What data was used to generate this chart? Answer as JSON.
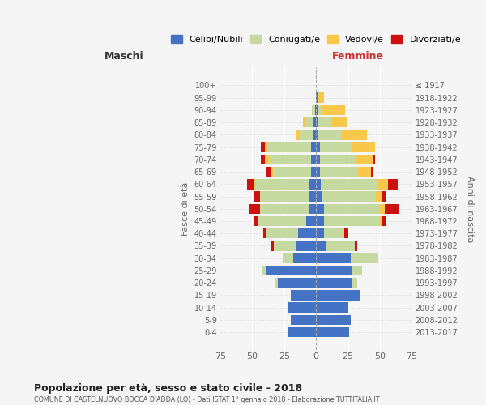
{
  "age_groups": [
    "100+",
    "95-99",
    "90-94",
    "85-89",
    "80-84",
    "75-79",
    "70-74",
    "65-69",
    "60-64",
    "55-59",
    "50-54",
    "45-49",
    "40-44",
    "35-39",
    "30-34",
    "25-29",
    "20-24",
    "15-19",
    "10-14",
    "5-9",
    "0-4"
  ],
  "birth_years": [
    "≤ 1917",
    "1918-1922",
    "1923-1927",
    "1928-1932",
    "1933-1937",
    "1938-1942",
    "1943-1947",
    "1948-1952",
    "1953-1957",
    "1958-1962",
    "1963-1967",
    "1968-1972",
    "1973-1977",
    "1978-1982",
    "1983-1987",
    "1988-1992",
    "1993-1997",
    "1998-2002",
    "2003-2007",
    "2008-2012",
    "2013-2017"
  ],
  "males": {
    "celibe": [
      0,
      0,
      1,
      2,
      2,
      4,
      4,
      4,
      5,
      6,
      6,
      8,
      14,
      15,
      18,
      39,
      30,
      20,
      22,
      20,
      22
    ],
    "coniugato": [
      0,
      0,
      2,
      6,
      11,
      34,
      33,
      30,
      42,
      38,
      38,
      38,
      25,
      18,
      8,
      3,
      2,
      0,
      0,
      0,
      0
    ],
    "vedovo": [
      0,
      0,
      0,
      2,
      3,
      2,
      3,
      1,
      1,
      0,
      0,
      0,
      0,
      0,
      0,
      0,
      0,
      0,
      0,
      0,
      0
    ],
    "divorziato": [
      0,
      0,
      0,
      0,
      0,
      3,
      3,
      4,
      6,
      5,
      9,
      2,
      2,
      2,
      0,
      0,
      0,
      0,
      0,
      0,
      0
    ]
  },
  "females": {
    "nubile": [
      0,
      1,
      1,
      2,
      2,
      3,
      3,
      3,
      4,
      5,
      6,
      6,
      6,
      8,
      27,
      28,
      28,
      34,
      25,
      27,
      26
    ],
    "coniugata": [
      0,
      1,
      4,
      10,
      18,
      25,
      27,
      30,
      44,
      42,
      44,
      44,
      15,
      22,
      22,
      8,
      4,
      0,
      0,
      0,
      0
    ],
    "vedova": [
      0,
      4,
      18,
      12,
      20,
      18,
      15,
      10,
      8,
      4,
      4,
      1,
      1,
      0,
      0,
      0,
      0,
      0,
      0,
      0,
      0
    ],
    "divorziata": [
      0,
      0,
      0,
      0,
      0,
      0,
      1,
      2,
      8,
      4,
      11,
      4,
      3,
      2,
      0,
      0,
      0,
      0,
      0,
      0,
      0
    ]
  },
  "colors": {
    "celibe": "#4472c4",
    "coniugato": "#c5d9a0",
    "vedovo": "#f9c84a",
    "divorziato": "#cc1111"
  },
  "xlim": 75,
  "title": "Popolazione per età, sesso e stato civile - 2018",
  "subtitle": "COMUNE DI CASTELNUOVO BOCCA D'ADDA (LO) - Dati ISTAT 1° gennaio 2018 - Elaborazione TUTTITALIA.IT",
  "xlabel_left": "Maschi",
  "xlabel_right": "Femmine",
  "ylabel_left": "Fasce di età",
  "ylabel_right": "Anni di nascita",
  "bg_color": "#f5f5f5",
  "legend_labels": [
    "Celibi/Nubili",
    "Coniugati/e",
    "Vedovi/e",
    "Divorziati/e"
  ]
}
